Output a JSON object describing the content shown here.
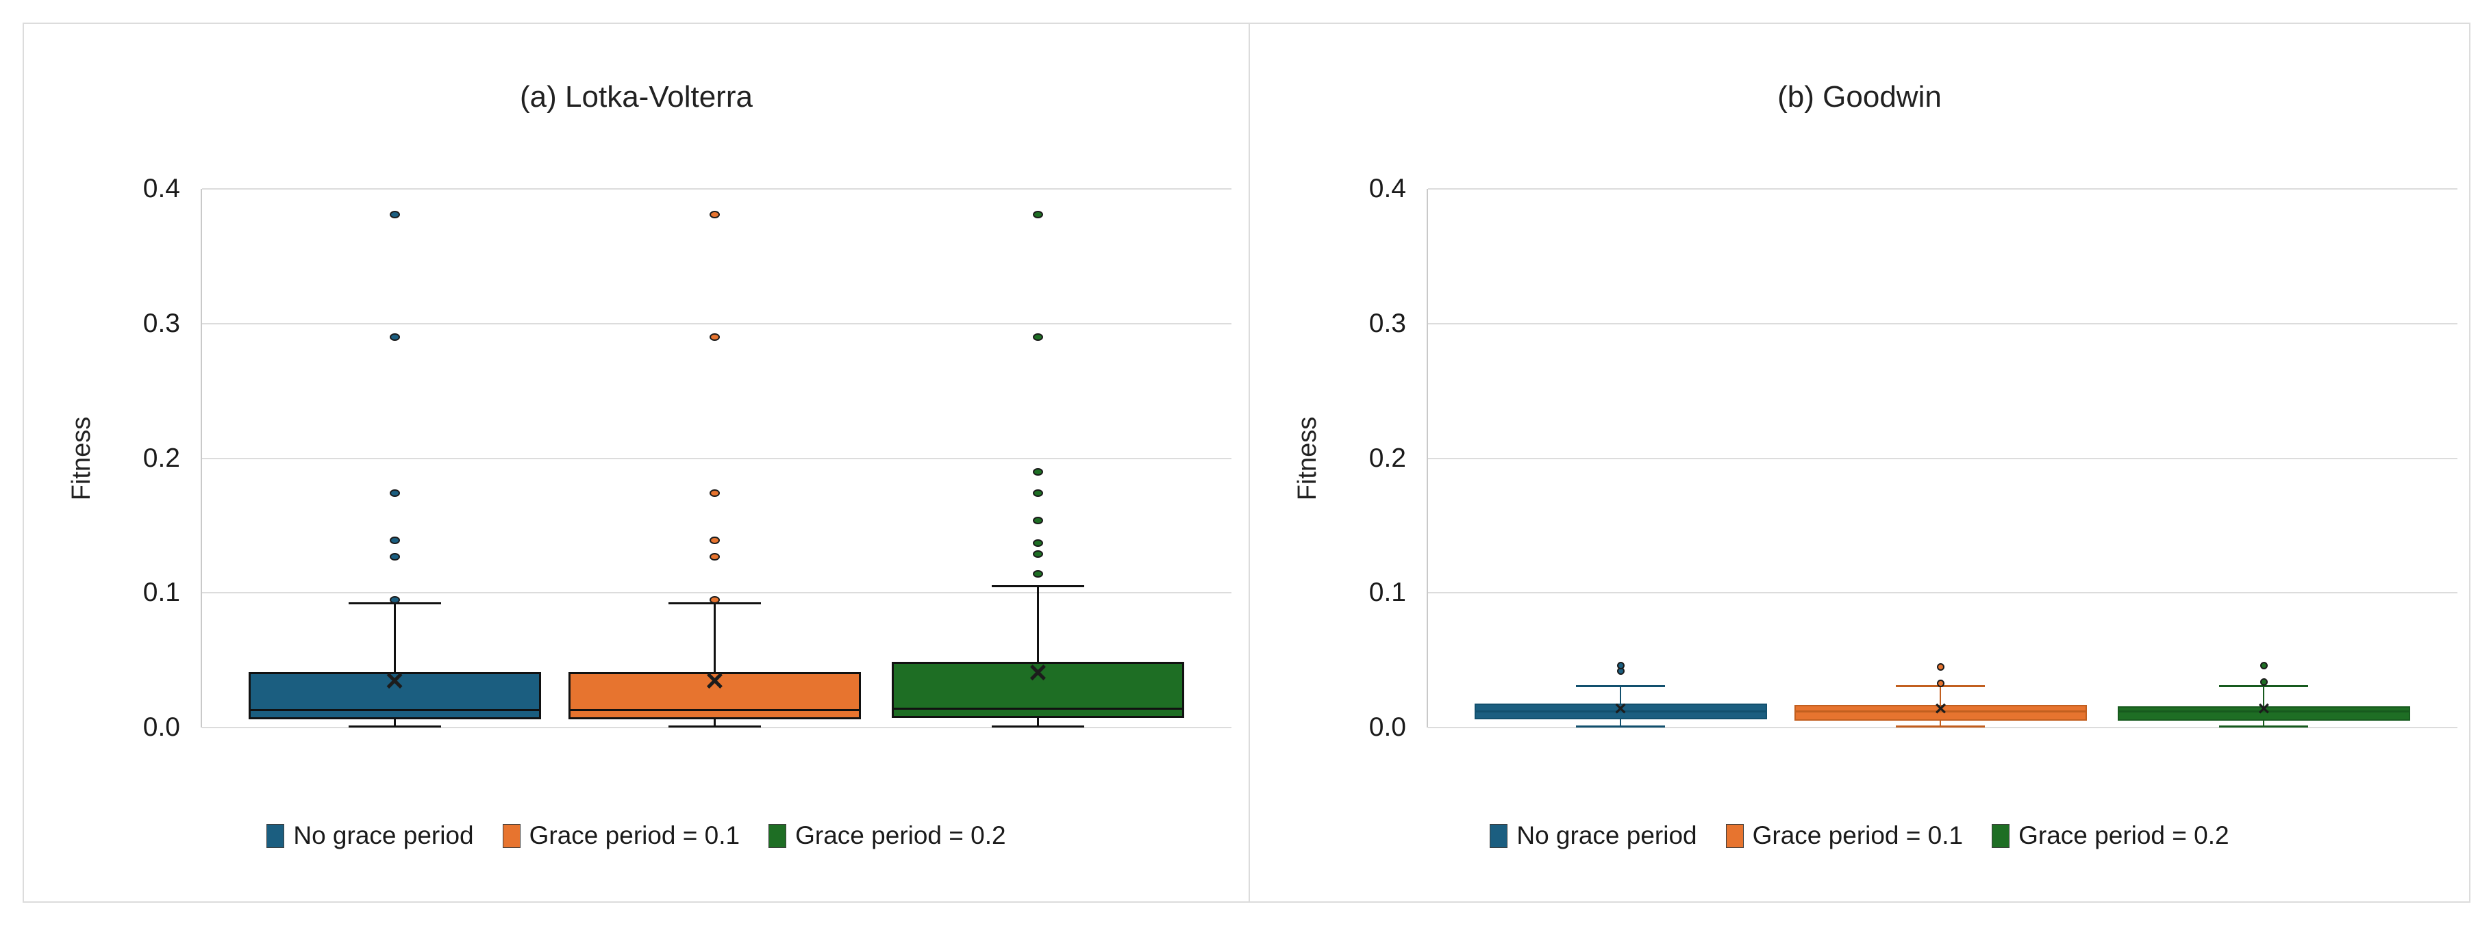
{
  "figure": {
    "background": "#ffffff",
    "card_border_color": "#dcdcdc",
    "grid_color": "#dcdcdc",
    "axis_spine_color": "#c9c9c9",
    "text_color": "#212121"
  },
  "chart_data": [
    {
      "type": "box",
      "title": "(a) Lotka-Volterra",
      "ylabel": "Fitness",
      "xlabel": "",
      "ylim": [
        0,
        0.4
      ],
      "grid": "horizontal",
      "legend_position": "bottom-center",
      "yticks": [
        {
          "v": 0.4,
          "label": "0.4"
        },
        {
          "v": 0.3,
          "label": "0.3"
        },
        {
          "v": 0.2,
          "label": "0.2"
        },
        {
          "v": 0.1,
          "label": "0.1"
        },
        {
          "v": 0.0,
          "label": "0.0"
        }
      ],
      "categories": [
        "No grace period",
        "Grace period = 0.1",
        "Grace period = 0.2"
      ],
      "series": [
        {
          "name": "No grace period",
          "color": "#1B5E80",
          "edge_color": "#111111",
          "whisker_low": 0.001,
          "q1": 0.006,
          "median": 0.013,
          "q3": 0.041,
          "whisker_high": 0.092,
          "mean": 0.034,
          "outliers": [
            0.095,
            0.127,
            0.139,
            0.174,
            0.29,
            0.381
          ]
        },
        {
          "name": "Grace period = 0.1",
          "color": "#E7742F",
          "edge_color": "#111111",
          "whisker_low": 0.001,
          "q1": 0.006,
          "median": 0.013,
          "q3": 0.041,
          "whisker_high": 0.092,
          "mean": 0.034,
          "outliers": [
            0.095,
            0.127,
            0.139,
            0.174,
            0.29,
            0.381
          ]
        },
        {
          "name": "Grace period = 0.2",
          "color": "#1E6E24",
          "edge_color": "#111111",
          "whisker_low": 0.001,
          "q1": 0.007,
          "median": 0.014,
          "q3": 0.049,
          "whisker_high": 0.105,
          "mean": 0.04,
          "outliers": [
            0.114,
            0.129,
            0.137,
            0.154,
            0.174,
            0.19,
            0.29,
            0.381
          ]
        }
      ]
    },
    {
      "type": "box",
      "title": "(b) Goodwin",
      "ylabel": "Fitness",
      "xlabel": "",
      "ylim": [
        0,
        0.4
      ],
      "grid": "horizontal",
      "legend_position": "bottom-center",
      "yticks": [
        {
          "v": 0.4,
          "label": "0.4"
        },
        {
          "v": 0.3,
          "label": "0.3"
        },
        {
          "v": 0.2,
          "label": "0.2"
        },
        {
          "v": 0.1,
          "label": "0.1"
        },
        {
          "v": 0.0,
          "label": "0.0"
        }
      ],
      "categories": [
        "No grace period",
        "Grace period = 0.1",
        "Grace period = 0.2"
      ],
      "series": [
        {
          "name": "No grace period",
          "color": "#1B5E80",
          "edge_color": "#12506E",
          "whisker_low": 0.001,
          "q1": 0.006,
          "median": 0.012,
          "q3": 0.018,
          "whisker_high": 0.031,
          "mean": 0.013,
          "outliers": [
            0.042,
            0.046
          ]
        },
        {
          "name": "Grace period = 0.1",
          "color": "#E7742F",
          "edge_color": "#C25F1F",
          "whisker_low": 0.001,
          "q1": 0.005,
          "median": 0.012,
          "q3": 0.017,
          "whisker_high": 0.031,
          "mean": 0.013,
          "outliers": [
            0.033,
            0.045
          ]
        },
        {
          "name": "Grace period = 0.2",
          "color": "#1E6E24",
          "edge_color": "#175A1E",
          "whisker_low": 0.001,
          "q1": 0.005,
          "median": 0.012,
          "q3": 0.016,
          "whisker_high": 0.031,
          "mean": 0.013,
          "outliers": [
            0.034,
            0.046
          ]
        }
      ]
    }
  ]
}
